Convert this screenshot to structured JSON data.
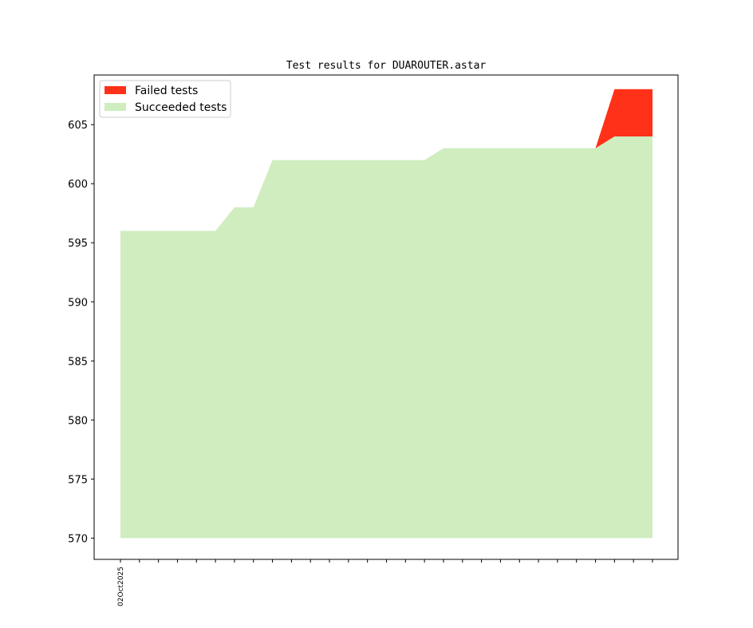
{
  "chart_data": {
    "type": "area",
    "title": "Test results for DUAROUTER.astar",
    "xlabel": "",
    "ylabel": "",
    "ylim": [
      568.2,
      609.2
    ],
    "y_ticks": [
      570,
      575,
      580,
      585,
      590,
      595,
      600,
      605
    ],
    "baseline": 570,
    "x_tick_count": 29,
    "x_labels": [
      {
        "index": 0,
        "label": "02Oct2025"
      }
    ],
    "legend_position": "top-left",
    "series": [
      {
        "name": "Failed tests",
        "color": "#ff3118",
        "values": [
          0,
          0,
          0,
          0,
          0,
          0,
          0,
          0,
          0,
          0,
          0,
          0,
          0,
          0,
          0,
          0,
          0,
          0,
          0,
          0,
          0,
          0,
          0,
          0,
          0,
          0,
          4,
          4,
          4
        ]
      },
      {
        "name": "Succeeded tests",
        "color": "#cfedbf",
        "values": [
          596,
          596,
          596,
          596,
          596,
          596,
          598,
          598,
          602,
          602,
          602,
          602,
          602,
          602,
          602,
          602,
          602,
          603,
          603,
          603,
          603,
          603,
          603,
          603,
          603,
          603,
          604,
          604,
          604
        ]
      }
    ]
  }
}
